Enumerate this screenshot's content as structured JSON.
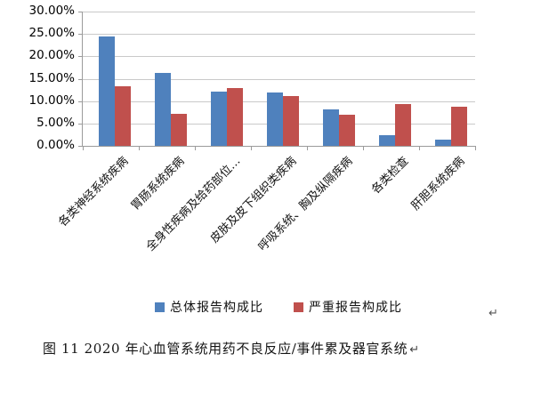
{
  "chart_data": {
    "type": "bar",
    "title": "",
    "categories": [
      "各类神经系统疾病",
      "胃肠系统疾病",
      "全身性疾病及给药部位…",
      "皮肤及皮下组织类疾病",
      "呼吸系统、胸及纵隔疾病",
      "各类检查",
      "肝胆系统疾病"
    ],
    "series": [
      {
        "name": "总体报告构成比",
        "color": "#4F81BD",
        "values": [
          24.4,
          16.3,
          12.2,
          11.9,
          8.2,
          2.3,
          1.4
        ]
      },
      {
        "name": "严重报告构成比",
        "color": "#C0504D",
        "values": [
          13.3,
          7.1,
          13.0,
          11.1,
          7.0,
          9.3,
          8.7
        ]
      }
    ],
    "xlabel": "",
    "ylabel": "",
    "ylim": [
      0,
      30
    ],
    "ytick_step": 5,
    "yticks": [
      "30.00%",
      "25.00%",
      "20.00%",
      "15.00%",
      "10.00%",
      "5.00%",
      "0.00%"
    ],
    "grid": true,
    "legend_position": "bottom"
  },
  "legend": {
    "items": [
      {
        "label": "总体报告构成比",
        "color": "#4F81BD"
      },
      {
        "label": "严重报告构成比",
        "color": "#C0504D"
      }
    ]
  },
  "caption": {
    "text": "图 11  2020 年心血管系统用药不良反应/事件累及器官系统",
    "paragraph_mark": "↵"
  },
  "chart_paragraph_mark": "↵",
  "colors": {
    "bar_overall": "#4F81BD",
    "bar_serious": "#C0504D",
    "axis_line": "#9b9b9b",
    "gridline": "#c9c9c9"
  }
}
